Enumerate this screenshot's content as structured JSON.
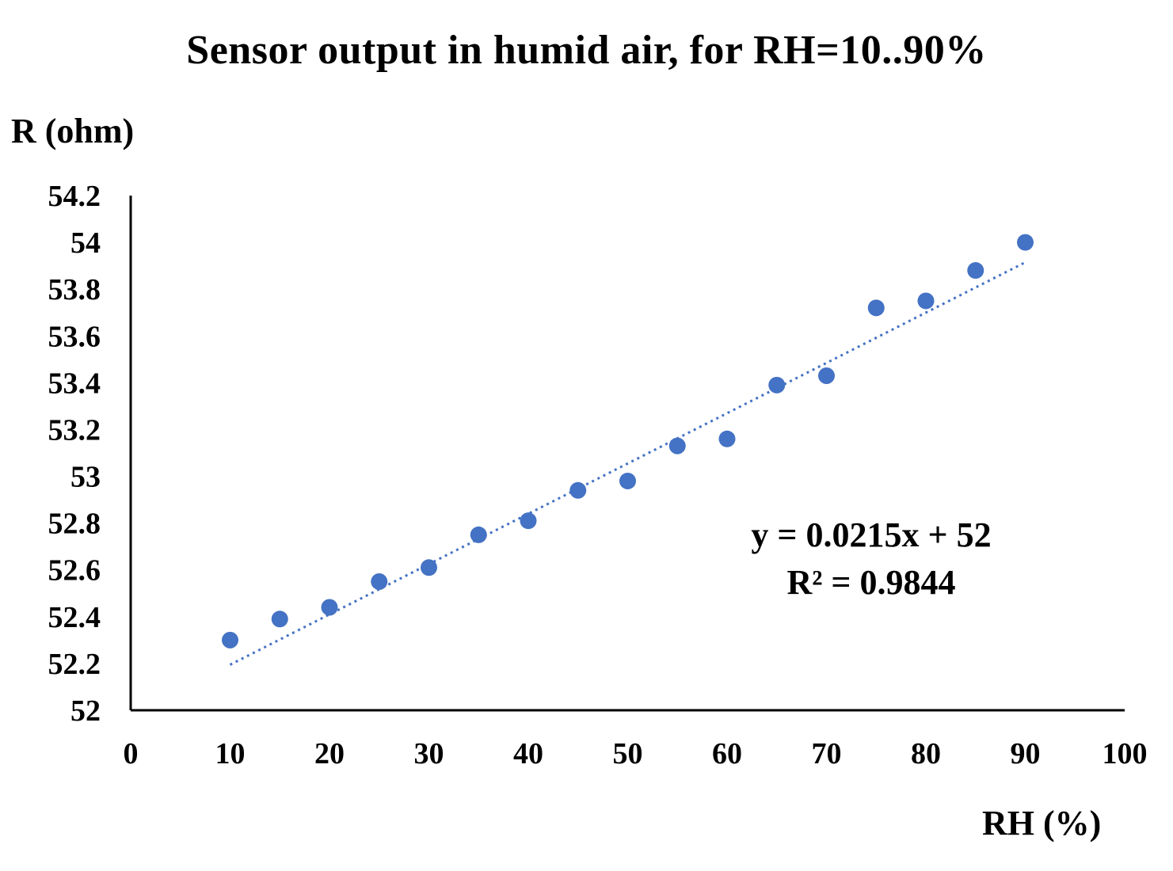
{
  "chart_data": {
    "type": "scatter",
    "title": "Sensor output in humid air, for RH=10..90%",
    "xlabel": "RH (%)",
    "ylabel": "R (ohm)",
    "xlim": [
      0,
      100
    ],
    "ylim": [
      52,
      54.2
    ],
    "x_ticks": [
      "0",
      "10",
      "20",
      "30",
      "40",
      "50",
      "60",
      "70",
      "80",
      "90",
      "100"
    ],
    "y_ticks": [
      "52",
      "52.2",
      "52.4",
      "52.6",
      "52.8",
      "53",
      "53.2",
      "53.4",
      "53.6",
      "53.8",
      "54",
      "54.2"
    ],
    "grid": false,
    "legend": "none",
    "marker_color": "#4472C4",
    "series": [
      {
        "x": [
          10,
          15,
          20,
          25,
          30,
          35,
          40,
          45,
          50,
          55,
          60,
          65,
          70,
          75,
          80,
          85,
          90
        ],
        "y": [
          52.3,
          52.39,
          52.44,
          52.55,
          52.61,
          52.75,
          52.81,
          52.94,
          52.98,
          53.13,
          53.16,
          53.39,
          53.43,
          53.72,
          53.75,
          53.88,
          54.0
        ]
      }
    ],
    "trendline": {
      "type": "linear",
      "slope": 0.0215,
      "intercept": 52,
      "x_range": [
        10,
        90
      ],
      "style": "dotted",
      "equation_label": "y = 0.0215x + 52",
      "r2_label": "R² = 0.9844"
    }
  }
}
